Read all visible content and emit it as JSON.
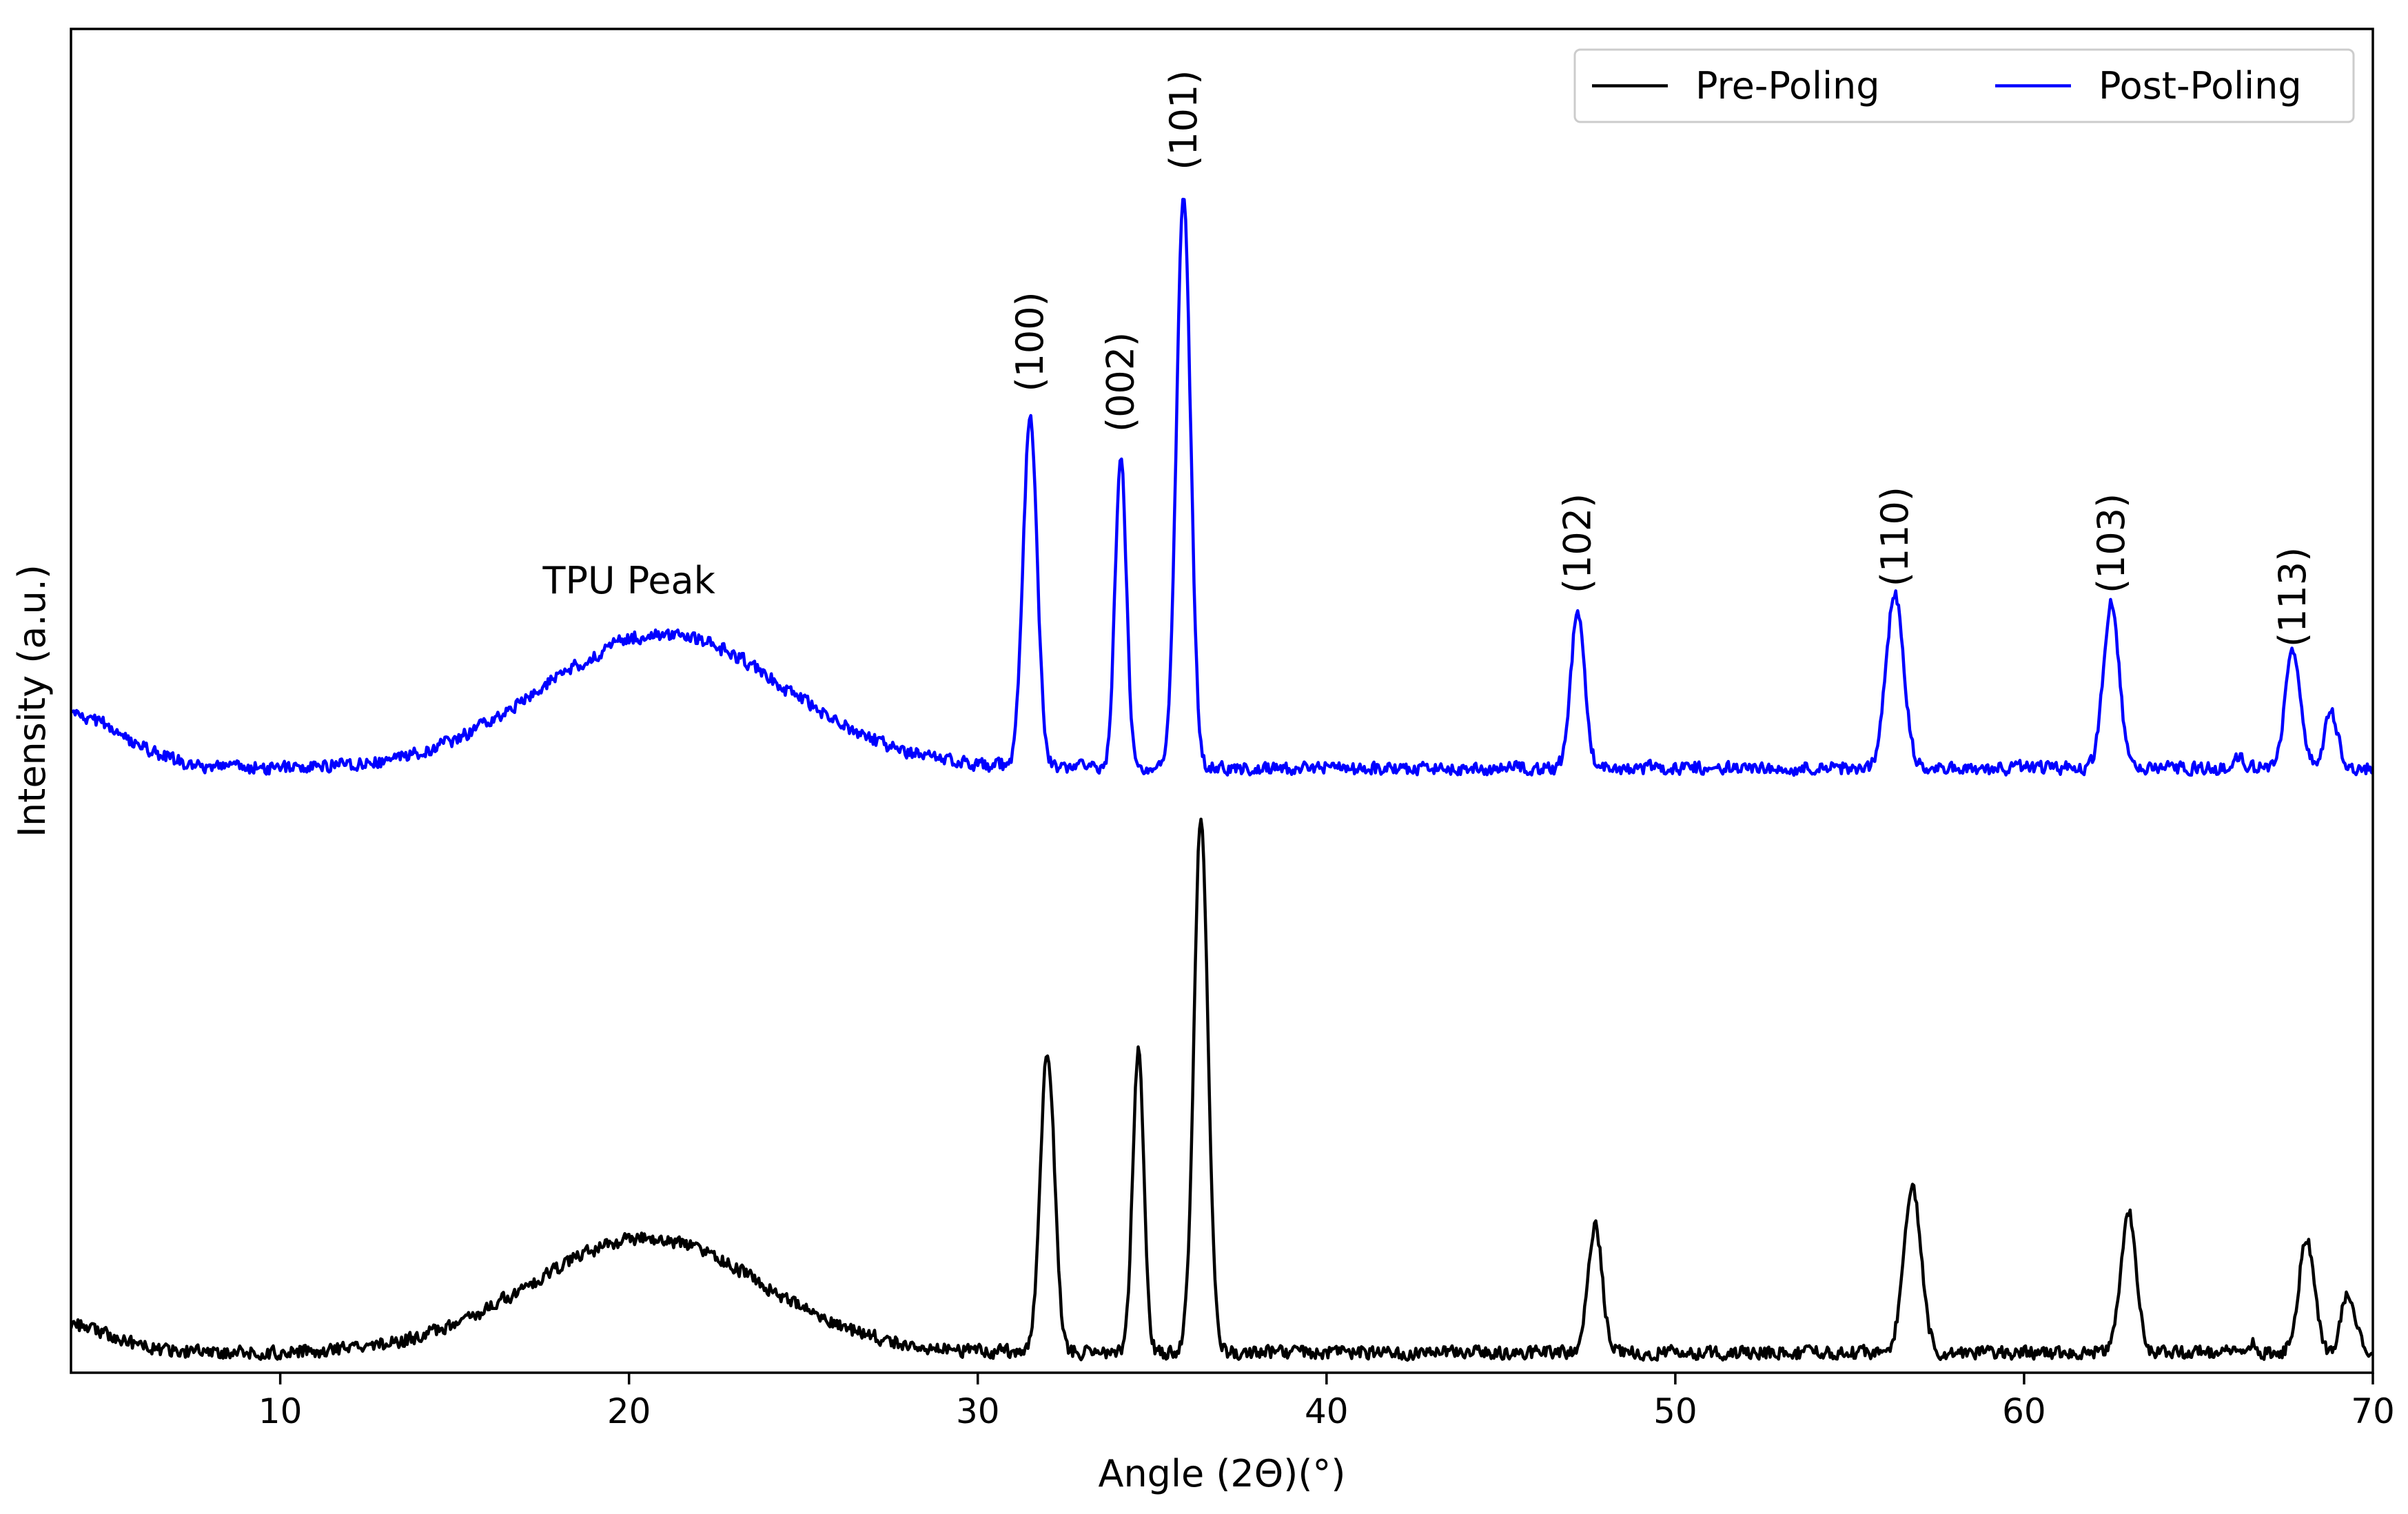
{
  "chart_data": {
    "type": "line",
    "title": "",
    "xlabel": "Angle (2Θ)(°)",
    "ylabel": "Intensity (a.u.)",
    "xlim": [
      4,
      70
    ],
    "ylim": [
      0,
      100
    ],
    "x_ticks": [
      10,
      20,
      30,
      40,
      50,
      60,
      70
    ],
    "y_ticks_visible": false,
    "grid": false,
    "legend_position": "top-right",
    "noise_seed": 7,
    "series": [
      {
        "name": "Pre-Poling",
        "color": "#000000",
        "baseline": 1.5,
        "noise": 0.55,
        "features": [
          {
            "center": 4,
            "height": 2.0,
            "width": 1.2
          },
          {
            "center": 20.5,
            "height": 8.5,
            "width": 3.3
          },
          {
            "center": 32.0,
            "height": 22.5,
            "width": 0.2
          },
          {
            "center": 34.6,
            "height": 22.5,
            "width": 0.16
          },
          {
            "center": 36.4,
            "height": 40.0,
            "width": 0.2
          },
          {
            "center": 47.7,
            "height": 9.5,
            "width": 0.2
          },
          {
            "center": 56.8,
            "height": 12.0,
            "width": 0.25
          },
          {
            "center": 63.0,
            "height": 10.5,
            "width": 0.22
          },
          {
            "center": 66.5,
            "height": 0.8,
            "width": 0.15
          },
          {
            "center": 68.1,
            "height": 8.5,
            "width": 0.22
          },
          {
            "center": 69.3,
            "height": 4.5,
            "width": 0.2
          }
        ]
      },
      {
        "name": "Post-Poling",
        "color": "#0000ff",
        "baseline": 45.0,
        "noise": 0.55,
        "features": [
          {
            "center": 4,
            "height": 4.0,
            "width": 1.5
          },
          {
            "center": 21.0,
            "height": 10.0,
            "width": 3.4
          },
          {
            "center": 31.5,
            "height": 26.0,
            "width": 0.2
          },
          {
            "center": 34.1,
            "height": 23.5,
            "width": 0.16
          },
          {
            "center": 35.9,
            "height": 43.0,
            "width": 0.2
          },
          {
            "center": 47.2,
            "height": 11.5,
            "width": 0.2
          },
          {
            "center": 56.3,
            "height": 13.0,
            "width": 0.25
          },
          {
            "center": 62.5,
            "height": 12.5,
            "width": 0.22
          },
          {
            "center": 66.1,
            "height": 1.0,
            "width": 0.15
          },
          {
            "center": 67.7,
            "height": 8.5,
            "width": 0.22
          },
          {
            "center": 68.8,
            "height": 4.0,
            "width": 0.2
          }
        ]
      }
    ],
    "annotations": [
      {
        "text": "TPU Peak",
        "x": 20.0,
        "y": 58.0,
        "rotation": 0
      },
      {
        "text": "(100)",
        "x": 31.5,
        "y": 73.0,
        "rotation": 90
      },
      {
        "text": "(002)",
        "x": 34.1,
        "y": 70.0,
        "rotation": 90
      },
      {
        "text": "(101)",
        "x": 35.9,
        "y": 89.5,
        "rotation": 90
      },
      {
        "text": "(102)",
        "x": 47.2,
        "y": 58.0,
        "rotation": 90
      },
      {
        "text": "(110)",
        "x": 56.3,
        "y": 58.5,
        "rotation": 90
      },
      {
        "text": "(103)",
        "x": 62.5,
        "y": 58.0,
        "rotation": 90
      },
      {
        "text": "(113)",
        "x": 67.7,
        "y": 54.0,
        "rotation": 90
      }
    ]
  }
}
